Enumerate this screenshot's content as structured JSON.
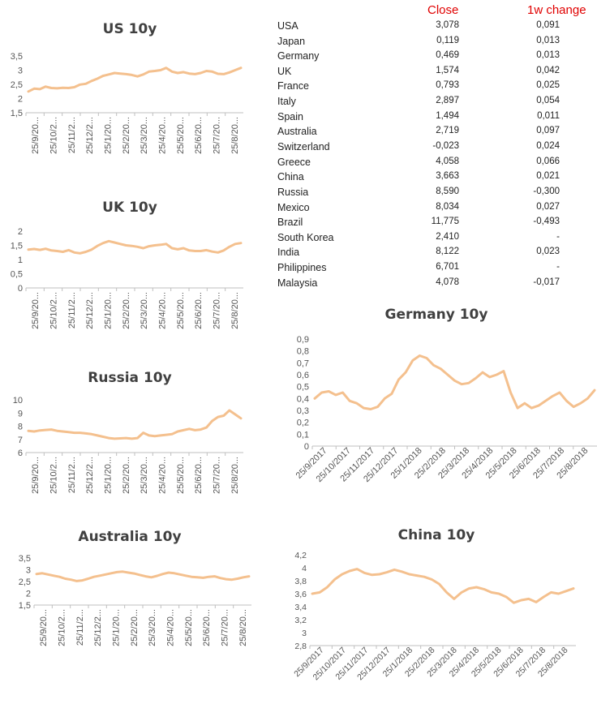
{
  "table": {
    "headers": {
      "close": "Close",
      "change": "1w change"
    },
    "rows": [
      {
        "country": "USA",
        "close": "3,078",
        "change": "0,091"
      },
      {
        "country": "Japan",
        "close": "0,119",
        "change": "0,013"
      },
      {
        "country": "Germany",
        "close": "0,469",
        "change": "0,013"
      },
      {
        "country": "UK",
        "close": "1,574",
        "change": "0,042"
      },
      {
        "country": "France",
        "close": "0,793",
        "change": "0,025"
      },
      {
        "country": "Italy",
        "close": "2,897",
        "change": "0,054"
      },
      {
        "country": "Spain",
        "close": "1,494",
        "change": "0,011"
      },
      {
        "country": "Australia",
        "close": "2,719",
        "change": "0,097"
      },
      {
        "country": "Switzerland",
        "close": "-0,023",
        "change": "0,024"
      },
      {
        "country": "Greece",
        "close": "4,058",
        "change": "0,066"
      },
      {
        "country": "China",
        "close": "3,663",
        "change": "0,021"
      },
      {
        "country": "Russia",
        "close": "8,590",
        "change": "-0,300"
      },
      {
        "country": "Mexico",
        "close": "8,034",
        "change": "0,027"
      },
      {
        "country": "Brazil",
        "close": "11,775",
        "change": "-0,493"
      },
      {
        "country": "South Korea",
        "close": "2,410",
        "change": "-"
      },
      {
        "country": "India",
        "close": "8,122",
        "change": "0,023"
      },
      {
        "country": "Philippines",
        "close": "6,701",
        "change": "-"
      },
      {
        "country": "Malaysia",
        "close": "4,078",
        "change": "-0,017"
      }
    ]
  },
  "chart_data": [
    {
      "id": "us",
      "type": "line",
      "title": "US 10y",
      "color": "#f4c08e",
      "yticks": [
        "1,5",
        "2",
        "2,5",
        "3",
        "3,5"
      ],
      "ylim": [
        1.5,
        3.5
      ],
      "xticks": [
        "25/9/20...",
        "25/10/2...",
        "25/11/2...",
        "25/12/2...",
        "25/1/20...",
        "25/2/20...",
        "25/3/20...",
        "25/4/20...",
        "25/5/20...",
        "25/6/20...",
        "25/7/20...",
        "25/8/20..."
      ],
      "series": [
        {
          "values": [
            2.25,
            2.35,
            2.33,
            2.42,
            2.37,
            2.36,
            2.38,
            2.37,
            2.4,
            2.49,
            2.52,
            2.62,
            2.7,
            2.8,
            2.85,
            2.9,
            2.88,
            2.86,
            2.83,
            2.78,
            2.85,
            2.95,
            2.97,
            3.0,
            3.08,
            2.95,
            2.9,
            2.93,
            2.88,
            2.86,
            2.9,
            2.97,
            2.95,
            2.87,
            2.86,
            2.92,
            3.0,
            3.08
          ]
        }
      ]
    },
    {
      "id": "uk",
      "type": "line",
      "title": "UK 10y",
      "color": "#f4c08e",
      "yticks": [
        "0",
        "0,5",
        "1",
        "1,5",
        "2"
      ],
      "ylim": [
        0,
        2
      ],
      "xticks": [
        "25/9/20...",
        "25/10/2...",
        "25/11/2...",
        "25/12/2...",
        "25/1/20...",
        "25/2/20...",
        "25/3/20...",
        "25/4/20...",
        "25/5/20...",
        "25/6/20...",
        "25/7/20...",
        "25/8/20..."
      ],
      "series": [
        {
          "values": [
            1.35,
            1.37,
            1.34,
            1.38,
            1.32,
            1.3,
            1.27,
            1.33,
            1.25,
            1.22,
            1.27,
            1.35,
            1.48,
            1.58,
            1.65,
            1.6,
            1.55,
            1.5,
            1.48,
            1.45,
            1.4,
            1.47,
            1.5,
            1.52,
            1.55,
            1.4,
            1.36,
            1.4,
            1.32,
            1.3,
            1.3,
            1.33,
            1.28,
            1.25,
            1.32,
            1.45,
            1.55,
            1.58
          ]
        }
      ]
    },
    {
      "id": "russia",
      "type": "line",
      "title": "Russia 10y",
      "color": "#f4c08e",
      "yticks": [
        "6",
        "7",
        "8",
        "9",
        "10"
      ],
      "ylim": [
        6,
        10
      ],
      "xticks": [
        "25/9/20...",
        "25/10/2...",
        "25/11/2...",
        "25/12/2...",
        "25/1/20...",
        "25/2/20...",
        "25/3/20...",
        "25/4/20...",
        "25/5/20...",
        "25/6/20...",
        "25/7/20...",
        "25/8/20..."
      ],
      "series": [
        {
          "values": [
            7.65,
            7.6,
            7.68,
            7.72,
            7.75,
            7.65,
            7.6,
            7.55,
            7.5,
            7.5,
            7.45,
            7.4,
            7.3,
            7.2,
            7.1,
            7.05,
            7.08,
            7.1,
            7.05,
            7.1,
            7.5,
            7.3,
            7.25,
            7.3,
            7.35,
            7.4,
            7.6,
            7.7,
            7.8,
            7.7,
            7.75,
            7.9,
            8.4,
            8.7,
            8.8,
            9.2,
            8.9,
            8.6
          ]
        }
      ]
    },
    {
      "id": "australia",
      "type": "line",
      "title": "Australia 10y",
      "color": "#f4c08e",
      "yticks": [
        "1,5",
        "2",
        "2,5",
        "3",
        "3,5"
      ],
      "ylim": [
        1.5,
        3.5
      ],
      "xticks": [
        "25/9/20...",
        "25/10/2...",
        "25/11/2...",
        "25/12/2...",
        "25/1/20...",
        "25/2/20...",
        "25/3/20...",
        "25/4/20...",
        "25/5/20...",
        "25/6/20...",
        "25/7/20...",
        "25/8/20..."
      ],
      "series": [
        {
          "values": [
            2.82,
            2.85,
            2.8,
            2.75,
            2.7,
            2.62,
            2.58,
            2.52,
            2.55,
            2.62,
            2.7,
            2.75,
            2.8,
            2.85,
            2.9,
            2.92,
            2.88,
            2.84,
            2.78,
            2.72,
            2.68,
            2.74,
            2.82,
            2.88,
            2.85,
            2.8,
            2.75,
            2.7,
            2.68,
            2.66,
            2.7,
            2.72,
            2.65,
            2.6,
            2.58,
            2.62,
            2.68,
            2.72
          ]
        }
      ]
    },
    {
      "id": "germany",
      "type": "line",
      "title": "Germany 10y",
      "color": "#f4c08e",
      "yticks": [
        "0",
        "0,1",
        "0,2",
        "0,3",
        "0,4",
        "0,5",
        "0,6",
        "0,7",
        "0,8",
        "0,9"
      ],
      "ylim": [
        0,
        0.9
      ],
      "xticks": [
        "25/9/2017",
        "25/10/2017",
        "25/11/2017",
        "25/12/2017",
        "25/1/2018",
        "25/2/2018",
        "25/3/2018",
        "25/4/2018",
        "25/5/2018",
        "25/6/2018",
        "25/7/2018",
        "25/8/2018"
      ],
      "series": [
        {
          "values": [
            0.4,
            0.45,
            0.46,
            0.43,
            0.45,
            0.38,
            0.36,
            0.32,
            0.31,
            0.33,
            0.4,
            0.44,
            0.56,
            0.62,
            0.72,
            0.76,
            0.74,
            0.68,
            0.65,
            0.6,
            0.55,
            0.52,
            0.53,
            0.57,
            0.62,
            0.58,
            0.6,
            0.63,
            0.45,
            0.32,
            0.36,
            0.32,
            0.34,
            0.38,
            0.42,
            0.45,
            0.38,
            0.33,
            0.36,
            0.4,
            0.47
          ]
        }
      ]
    },
    {
      "id": "china",
      "type": "line",
      "title": "China 10y",
      "color": "#f4c08e",
      "yticks": [
        "2,8",
        "3",
        "3,2",
        "3,4",
        "3,6",
        "3,8",
        "4",
        "4,2"
      ],
      "ylim": [
        2.8,
        4.2
      ],
      "xticks": [
        "25/9/2017",
        "25/10/2017",
        "25/11/2017",
        "25/12/2017",
        "25/1/2018",
        "25/2/2018",
        "25/3/2018",
        "25/4/2018",
        "25/5/2018",
        "25/6/2018",
        "25/7/2018",
        "25/8/2018"
      ],
      "series": [
        {
          "values": [
            3.6,
            3.62,
            3.7,
            3.82,
            3.9,
            3.95,
            3.98,
            3.92,
            3.89,
            3.9,
            3.93,
            3.97,
            3.94,
            3.9,
            3.88,
            3.86,
            3.82,
            3.75,
            3.62,
            3.52,
            3.62,
            3.68,
            3.7,
            3.67,
            3.62,
            3.6,
            3.55,
            3.46,
            3.5,
            3.52,
            3.47,
            3.55,
            3.62,
            3.6,
            3.64,
            3.68
          ]
        }
      ]
    }
  ]
}
